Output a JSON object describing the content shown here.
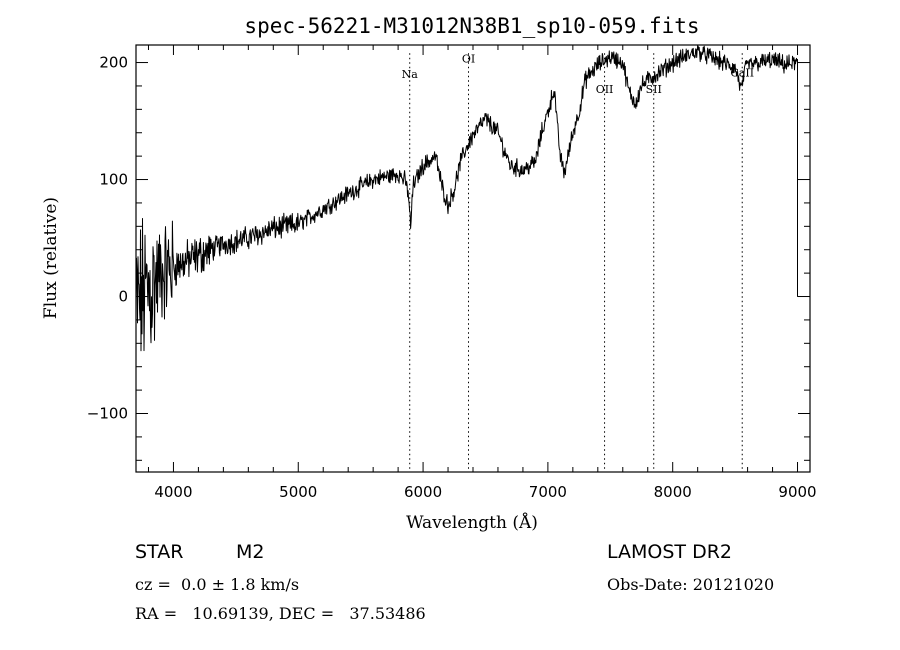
{
  "chart_data": {
    "type": "line",
    "title": "spec-56221-M31012N38B1_sp10-059.fits",
    "xlabel": "Wavelength (Å)",
    "ylabel": "Flux (relative)",
    "xlim": [
      3700,
      9100
    ],
    "ylim": [
      -150,
      215
    ],
    "xticks": [
      4000,
      5000,
      6000,
      7000,
      8000,
      9000
    ],
    "yticks": [
      -100,
      0,
      100,
      200
    ],
    "series": [
      {
        "name": "spectrum",
        "anchors_x": [
          3700,
          3750,
          3800,
          3900,
          4000,
          4200,
          4400,
          4600,
          4800,
          5000,
          5200,
          5400,
          5600,
          5800,
          5850,
          5880,
          5900,
          5920,
          6000,
          6100,
          6150,
          6200,
          6250,
          6300,
          6350,
          6400,
          6450,
          6500,
          6600,
          6650,
          6700,
          6800,
          6900,
          6950,
          7000,
          7050,
          7080,
          7100,
          7130,
          7150,
          7200,
          7250,
          7300,
          7400,
          7500,
          7600,
          7650,
          7700,
          7750,
          7800,
          7900,
          8000,
          8100,
          8200,
          8300,
          8400,
          8500,
          8530,
          8550,
          8570,
          8600,
          8700,
          8800,
          8900,
          9000
        ],
        "anchors_y": [
          -10,
          0,
          5,
          20,
          25,
          35,
          45,
          50,
          58,
          62,
          75,
          88,
          100,
          105,
          100,
          90,
          60,
          95,
          112,
          120,
          95,
          78,
          92,
          115,
          128,
          138,
          145,
          152,
          140,
          125,
          112,
          108,
          115,
          140,
          158,
          178,
          140,
          120,
          105,
          115,
          140,
          158,
          185,
          198,
          205,
          200,
          175,
          165,
          180,
          185,
          192,
          200,
          205,
          210,
          205,
          200,
          195,
          185,
          175,
          190,
          198,
          200,
          202,
          198,
          200
        ]
      }
    ],
    "lines": [
      {
        "label": "Na",
        "x": 5893
      },
      {
        "label": "OI",
        "x": 6364
      },
      {
        "label": "OII",
        "x": 7454
      },
      {
        "label": "SII",
        "x": 7848
      },
      {
        "label": "CaII",
        "x": 8557
      }
    ]
  },
  "info": {
    "object_type": "STAR",
    "subclass": "M2",
    "survey": "LAMOST DR2",
    "velocity": "cz =  0.0 ± 1.8 km/s",
    "obs_date": "Obs-Date: 20121020",
    "coords": "RA =   10.69139, DEC =   37.53486"
  }
}
